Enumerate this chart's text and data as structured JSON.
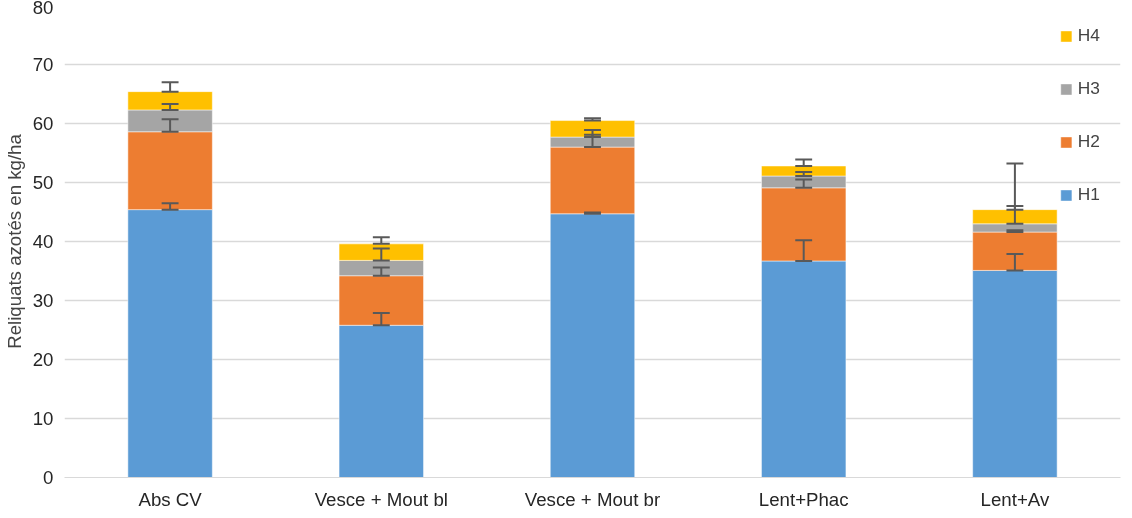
{
  "chart_data": {
    "type": "bar",
    "stacked": true,
    "ylabel": "Reliquats azotés en kg/ha",
    "categories": [
      "Abs CV",
      "Vesce + Mout bl",
      "Vesce + Mout br",
      "Lent+Phac",
      "Lent+Av"
    ],
    "series": [
      {
        "name": "H1",
        "color": "#5b9bd5",
        "values": [
          45.4,
          25.8,
          44.7,
          36.7,
          35.1
        ],
        "errors": [
          [
            45.4,
            46.5
          ],
          [
            25.8,
            27.9
          ],
          [
            44.7,
            44.9
          ],
          [
            36.7,
            40.2
          ],
          [
            35.1,
            37.9
          ]
        ]
      },
      {
        "name": "H2",
        "color": "#ed7d31",
        "values": [
          13.2,
          8.4,
          11.3,
          12.4,
          6.5
        ],
        "errors": [
          [
            58.6,
            60.7
          ],
          [
            34.2,
            35.6
          ],
          [
            56.0,
            58.9
          ],
          [
            49.1,
            50.5
          ],
          [
            41.6,
            41.9
          ]
        ]
      },
      {
        "name": "H3",
        "color": "#a5a5a5",
        "values": [
          3.7,
          2.6,
          1.7,
          2.0,
          1.4
        ],
        "errors": [
          [
            62.3,
            63.3
          ],
          [
            36.8,
            38.8
          ],
          [
            57.7,
            58.1
          ],
          [
            51.1,
            51.8
          ],
          [
            43.0,
            46.0
          ]
        ]
      },
      {
        "name": "H4",
        "color": "#ffc000",
        "values": [
          3.1,
          2.8,
          2.8,
          1.7,
          2.4
        ],
        "errors": [
          [
            65.4,
            67.0
          ],
          [
            39.6,
            40.7
          ],
          [
            60.5,
            60.9
          ],
          [
            52.8,
            53.9
          ],
          [
            45.4,
            53.2
          ]
        ]
      }
    ],
    "ylim": [
      0,
      80
    ],
    "yticks": [
      0,
      10,
      20,
      30,
      40,
      50,
      60,
      70,
      80
    ],
    "grid": "y",
    "legend": "top right"
  }
}
